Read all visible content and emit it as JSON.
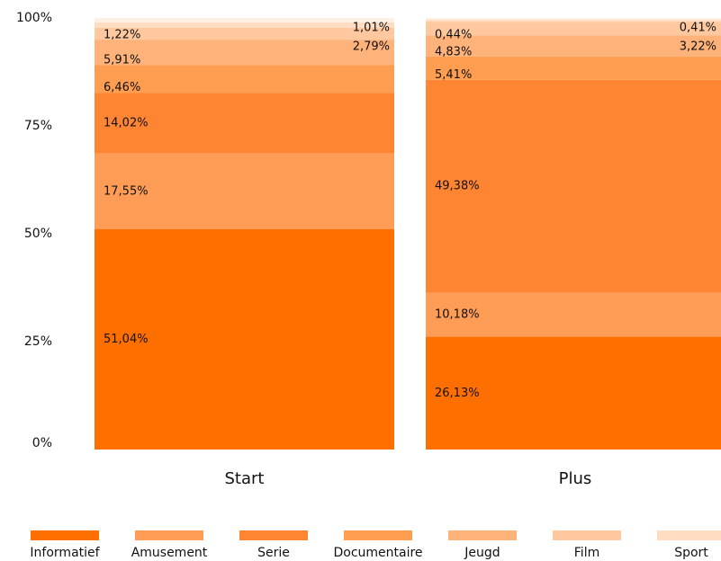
{
  "chart_data": {
    "type": "stacked_bar",
    "categories": [
      "Start",
      "Plus"
    ],
    "ylim": [
      0,
      100
    ],
    "yticks": [
      {
        "value": 0,
        "label": "0%"
      },
      {
        "value": 25,
        "label": "25%"
      },
      {
        "value": 50,
        "label": "50%"
      },
      {
        "value": 75,
        "label": "75%"
      },
      {
        "value": 100,
        "label": "100%"
      }
    ],
    "legend": "bottom",
    "series": [
      {
        "name": "Informatief",
        "color": "#ff6f00",
        "values": [
          51.04,
          26.13
        ],
        "value_labels": [
          "51,04%",
          "26,13%"
        ]
      },
      {
        "name": "Amusement",
        "color": "#ff9c55",
        "values": [
          17.55,
          10.18
        ],
        "value_labels": [
          "17,55%",
          "10,18%"
        ]
      },
      {
        "name": "Serie",
        "color": "#ff8533",
        "values": [
          14.02,
          49.38
        ],
        "value_labels": [
          "14,02%",
          "49,38%"
        ]
      },
      {
        "name": "Documentaire",
        "color": "#ff9d50",
        "values": [
          6.46,
          5.41
        ],
        "value_labels": [
          "6,46%",
          "5,41%"
        ]
      },
      {
        "name": "Jeugd",
        "color": "#ffb27a",
        "values": [
          5.91,
          4.83
        ],
        "value_labels": [
          "5,91%",
          "4,83%"
        ]
      },
      {
        "name": "Film",
        "color": "#ffc89f",
        "values": [
          2.79,
          3.22
        ],
        "value_labels": [
          "2,79%",
          "3,22%"
        ]
      },
      {
        "name": "Sport",
        "color": "#ffdcc2",
        "values": [
          1.22,
          0.44
        ],
        "value_labels": [
          "1,22%",
          "0,44%"
        ]
      },
      {
        "color": "#fff0e4",
        "values": [
          1.01,
          0.41
        ],
        "value_labels": [
          "1,01%",
          "0,41%"
        ]
      }
    ]
  }
}
